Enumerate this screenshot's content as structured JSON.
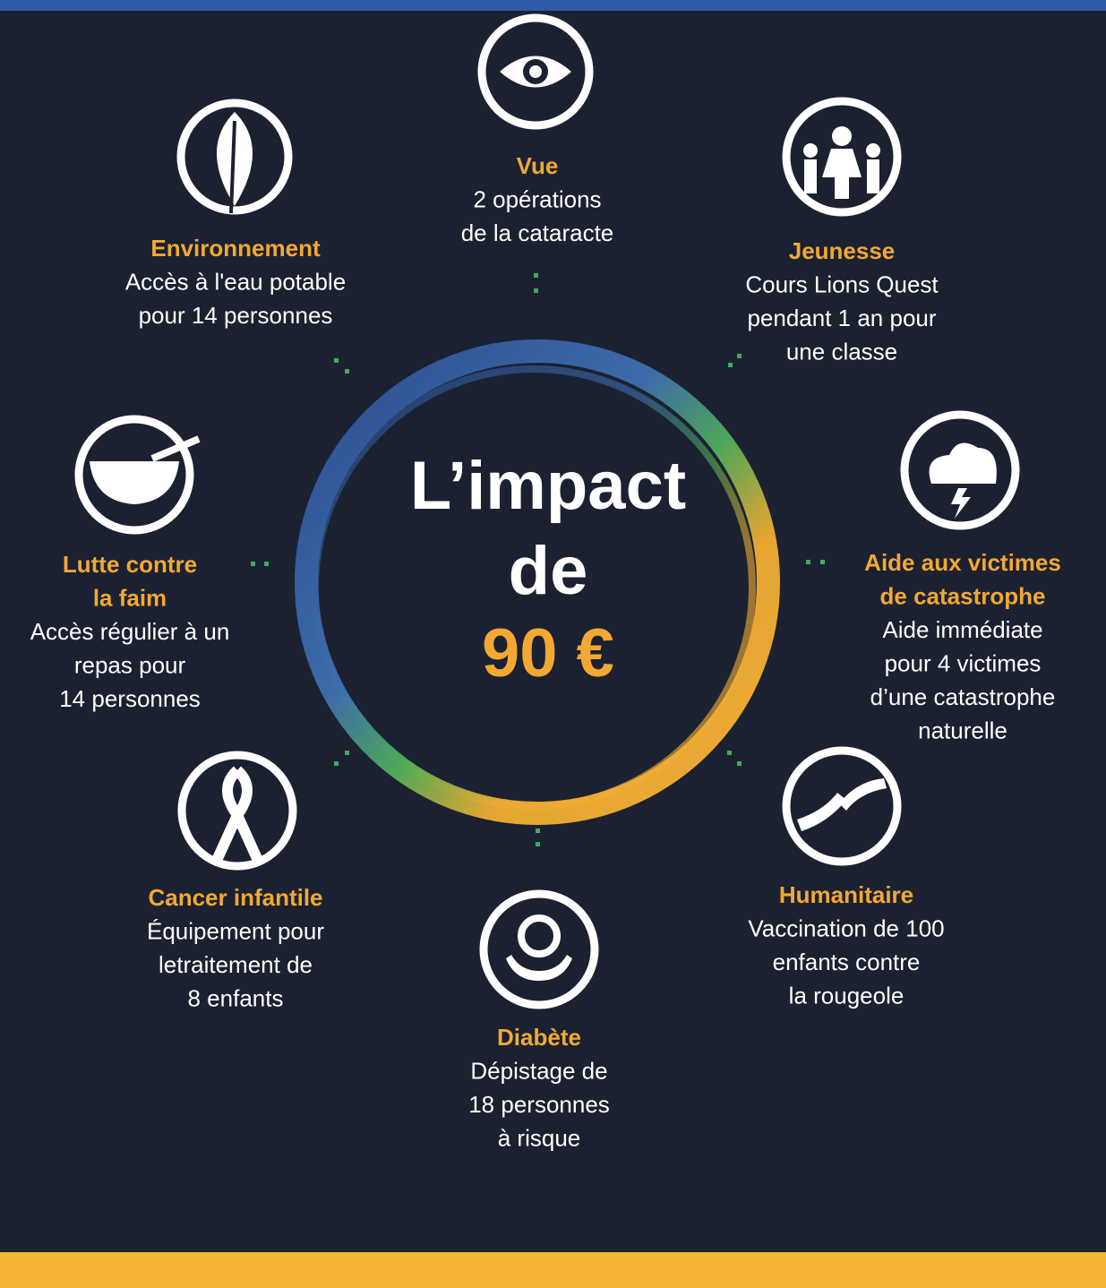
{
  "center": {
    "lines": [
      "L’impact",
      "de",
      "90 €"
    ]
  },
  "items": [
    {
      "title": [
        "Vue"
      ],
      "lines": [
        "2 opérations",
        "de la cataracte"
      ]
    },
    {
      "title": [
        "Jeunesse"
      ],
      "lines": [
        "Cours Lions Quest",
        "pendant 1 an pour",
        "une classe"
      ]
    },
    {
      "title": [
        "Aide aux victimes",
        "de catastrophe"
      ],
      "lines": [
        "Aide immédiate",
        "pour 4 victimes",
        "d’une catastrophe",
        "naturelle"
      ]
    },
    {
      "title": [
        "Humanitaire"
      ],
      "lines": [
        "Vaccination de 100",
        "enfants contre",
        "la rougeole"
      ]
    },
    {
      "title": [
        "Diabète"
      ],
      "lines": [
        "Dépistage de",
        "18 personnes",
        "à risque"
      ]
    },
    {
      "title": [
        "Cancer infantile"
      ],
      "lines": [
        "Équipement pour",
        "letraitement de",
        "8 enfants"
      ]
    },
    {
      "title": [
        "Lutte contre",
        "la faim"
      ],
      "lines": [
        "Accès régulier à un",
        "repas pour",
        "14 personnes"
      ]
    },
    {
      "title": [
        "Environnement"
      ],
      "lines": [
        "Accès à l'eau potable",
        "pour 14 personnes"
      ]
    }
  ]
}
